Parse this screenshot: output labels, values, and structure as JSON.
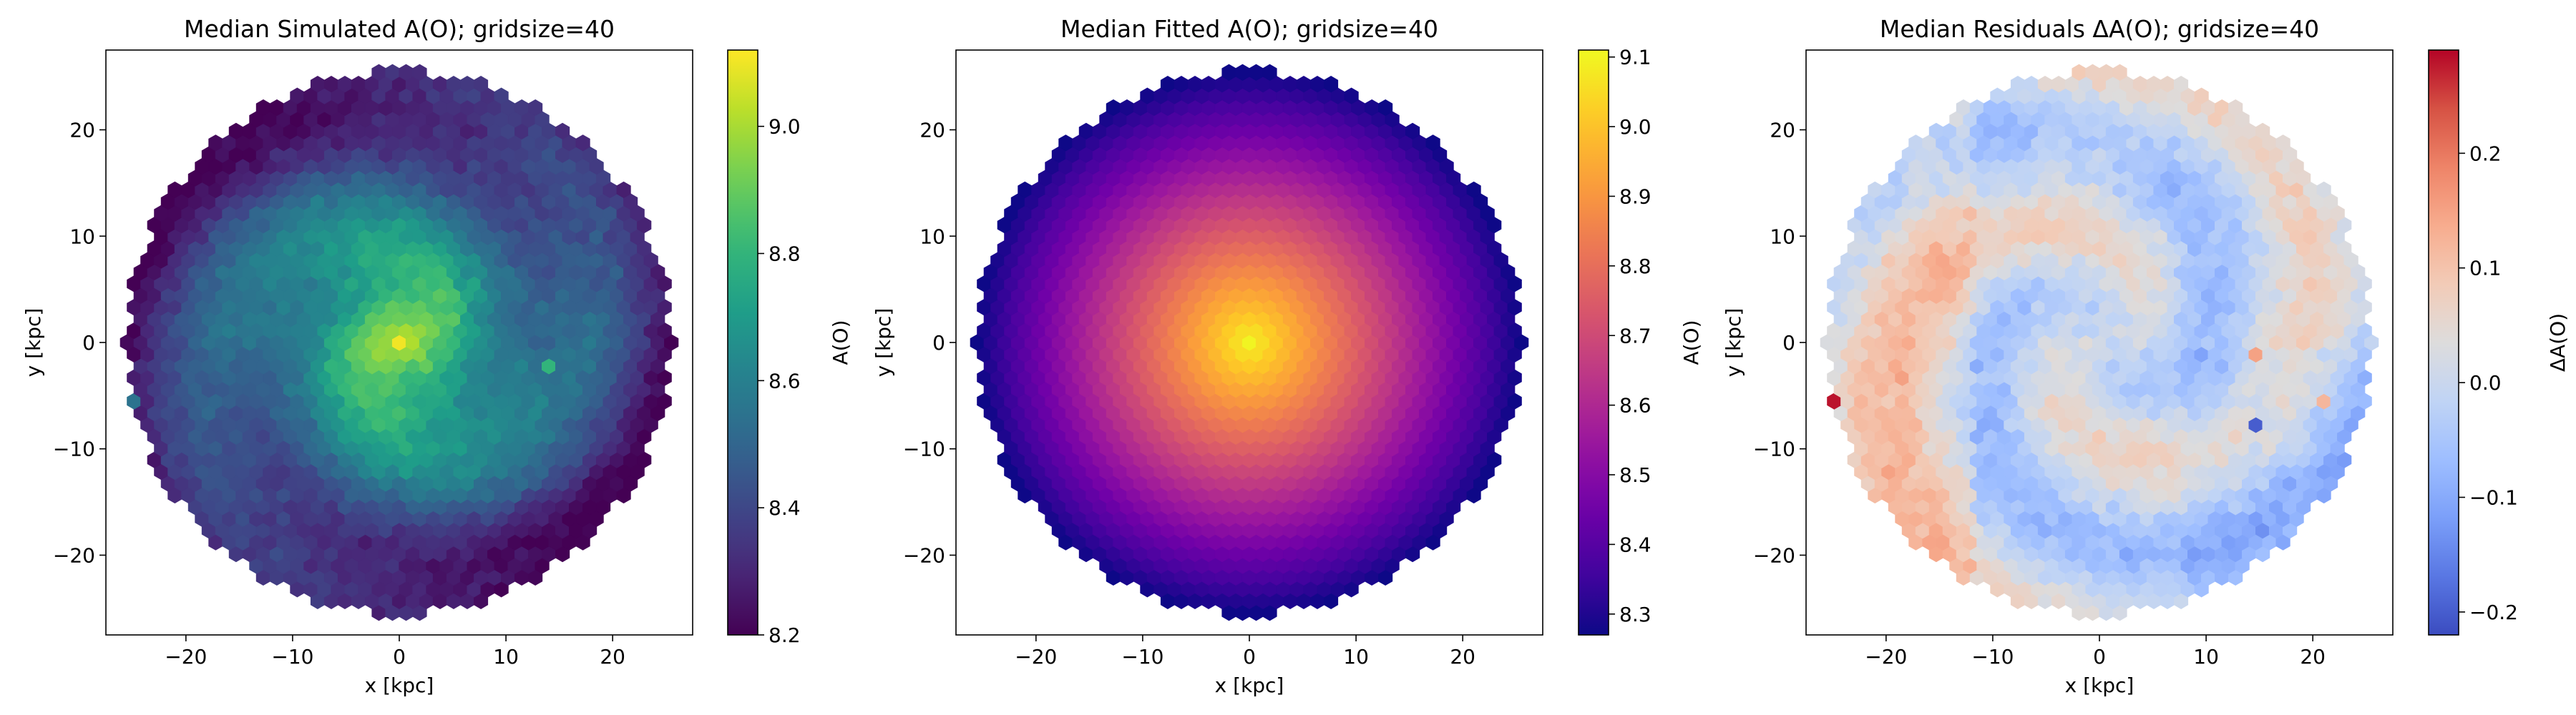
{
  "chart_data": [
    {
      "type": "heatmap",
      "variant": "hexbin",
      "title": "Median Simulated A(O); gridsize=40",
      "xlabel": "x [kpc]",
      "ylabel": "y [kpc]",
      "xlim": [
        -27.5,
        27.5
      ],
      "ylim": [
        -27.5,
        27.5
      ],
      "xticks": [
        -20,
        -10,
        0,
        10,
        20
      ],
      "yticks": [
        -20,
        -10,
        0,
        10,
        20
      ],
      "colormap": "viridis",
      "colorbar": {
        "label": "A(O)",
        "range": [
          8.2,
          9.12
        ],
        "ticks": [
          "8.2",
          "8.4",
          "8.6",
          "8.8",
          "9.0"
        ]
      },
      "disk_radius_kpc": 25.5,
      "field": {
        "kind": "gradient_with_spiral",
        "center_value": 9.1,
        "edge_value": 8.26,
        "noise": 0.07,
        "spiral_amplitude": 0.09
      },
      "notable_bins": [
        {
          "x": -25.5,
          "y": -5.3,
          "value": 8.55
        },
        {
          "x": 14.5,
          "y": -2.2,
          "value": 8.8
        }
      ]
    },
    {
      "type": "heatmap",
      "variant": "hexbin",
      "title": "Median Fitted A(O); gridsize=40",
      "xlabel": "x [kpc]",
      "ylabel": "y [kpc]",
      "xlim": [
        -27.5,
        27.5
      ],
      "ylim": [
        -27.5,
        27.5
      ],
      "xticks": [
        -20,
        -10,
        0,
        10,
        20
      ],
      "yticks": [
        -20,
        -10,
        0,
        10,
        20
      ],
      "colormap": "plasma",
      "colorbar": {
        "label": "A(O)",
        "range": [
          8.27,
          9.11
        ],
        "ticks": [
          "8.3",
          "8.4",
          "8.5",
          "8.6",
          "8.7",
          "8.8",
          "8.9",
          "9.0",
          "9.1"
        ]
      },
      "disk_radius_kpc": 25.5,
      "field": {
        "kind": "smooth_radial_gradient",
        "center_value": 9.1,
        "edge_value": 8.27,
        "noise": 0.0,
        "spiral_amplitude": 0.0
      },
      "notable_bins": []
    },
    {
      "type": "heatmap",
      "variant": "hexbin",
      "title": "Median Residuals ΔA(O); gridsize=40",
      "xlabel": "x [kpc]",
      "ylabel": "y [kpc]",
      "xlim": [
        -27.5,
        27.5
      ],
      "ylim": [
        -27.5,
        27.5
      ],
      "xticks": [
        -20,
        -10,
        0,
        10,
        20
      ],
      "yticks": [
        -20,
        -10,
        0,
        10,
        20
      ],
      "colormap": "coolwarm",
      "colorbar": {
        "label": "ΔA(O)",
        "range": [
          -0.22,
          0.29
        ],
        "ticks": [
          "−0.2",
          "−0.1",
          "0.0",
          "0.1",
          "0.2"
        ]
      },
      "disk_radius_kpc": 25.5,
      "field": {
        "kind": "spiral_residual",
        "center_value": 0.0,
        "edge_value": 0.0,
        "noise": 0.045,
        "spiral_amplitude": 0.07
      },
      "notable_bins": [
        {
          "x": -25.5,
          "y": -5.3,
          "value": 0.28
        },
        {
          "x": 14.5,
          "y": -1.5,
          "value": 0.15
        },
        {
          "x": 21.0,
          "y": -5.3,
          "value": 0.12
        },
        {
          "x": 15.0,
          "y": -8.0,
          "value": -0.2
        }
      ]
    }
  ]
}
